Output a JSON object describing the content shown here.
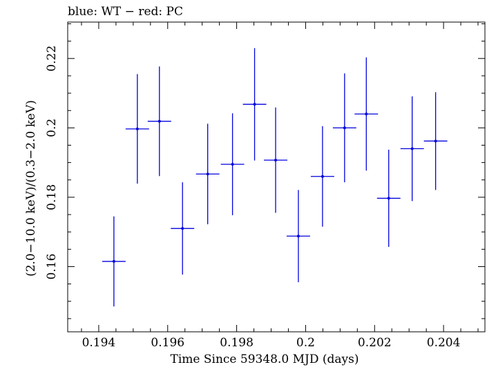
{
  "chart_data": {
    "type": "scatter",
    "title": "blue: WT − red: PC",
    "xlabel": "Time Since 59348.0 MJD (days)",
    "ylabel": "(2.0−10.0 keV)/(0.3−2.0 keV)",
    "xlim": [
      0.1931,
      0.2052
    ],
    "ylim": [
      0.1412,
      0.2305
    ],
    "xticks": [
      0.194,
      0.196,
      0.198,
      0.2,
      0.202,
      0.204
    ],
    "xtick_labels": [
      "0.194",
      "0.196",
      "0.198",
      "0.2",
      "0.202",
      "0.204"
    ],
    "yticks": [
      0.16,
      0.18,
      0.2,
      0.22
    ],
    "ytick_labels": [
      "0.16",
      "0.18",
      "0.2",
      "0.22"
    ],
    "grid": false,
    "series": [
      {
        "color": "#0000dd",
        "points": [
          {
            "x": 0.19444,
            "xerr": 0.00034,
            "y": 0.1615,
            "yerr": 0.013
          },
          {
            "x": 0.19512,
            "xerr": 0.00034,
            "y": 0.1997,
            "yerr": 0.0158
          },
          {
            "x": 0.19576,
            "xerr": 0.00034,
            "y": 0.2019,
            "yerr": 0.0158
          },
          {
            "x": 0.19643,
            "xerr": 0.00034,
            "y": 0.171,
            "yerr": 0.0133
          },
          {
            "x": 0.19716,
            "xerr": 0.00034,
            "y": 0.1867,
            "yerr": 0.0145
          },
          {
            "x": 0.19788,
            "xerr": 0.00034,
            "y": 0.1895,
            "yerr": 0.0147
          },
          {
            "x": 0.19852,
            "xerr": 0.00034,
            "y": 0.2068,
            "yerr": 0.0162
          },
          {
            "x": 0.19913,
            "xerr": 0.00034,
            "y": 0.1907,
            "yerr": 0.0152
          },
          {
            "x": 0.19979,
            "xerr": 0.00034,
            "y": 0.1688,
            "yerr": 0.0133
          },
          {
            "x": 0.20049,
            "xerr": 0.00034,
            "y": 0.186,
            "yerr": 0.0145
          },
          {
            "x": 0.20113,
            "xerr": 0.00034,
            "y": 0.2,
            "yerr": 0.0157
          },
          {
            "x": 0.20176,
            "xerr": 0.00034,
            "y": 0.204,
            "yerr": 0.0163
          },
          {
            "x": 0.20241,
            "xerr": 0.00034,
            "y": 0.1797,
            "yerr": 0.014
          },
          {
            "x": 0.20309,
            "xerr": 0.00034,
            "y": 0.194,
            "yerr": 0.0151
          },
          {
            "x": 0.20377,
            "xerr": 0.00034,
            "y": 0.1962,
            "yerr": 0.0141
          }
        ]
      }
    ]
  }
}
